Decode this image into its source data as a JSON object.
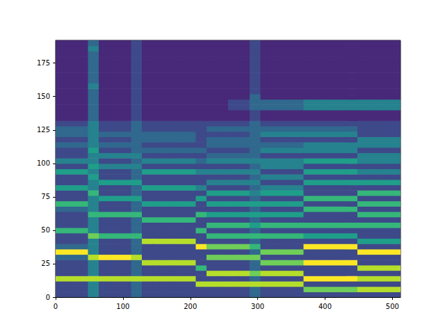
{
  "chart_data": {
    "type": "heatmap",
    "x": [
      0,
      16,
      32,
      48,
      64,
      80,
      96,
      112,
      128,
      144,
      160,
      176,
      192,
      208,
      224,
      240,
      256,
      272,
      288,
      304,
      320,
      336,
      352,
      368,
      384,
      400,
      416,
      432,
      448,
      464,
      480,
      496
    ],
    "y": [
      0,
      4,
      8,
      12,
      16,
      20,
      24,
      28,
      32,
      36,
      40,
      44,
      48,
      52,
      56,
      60,
      64,
      68,
      72,
      76,
      80,
      84,
      88,
      92,
      96,
      100,
      104,
      108,
      112,
      116,
      120,
      124,
      128,
      132,
      136,
      140,
      144,
      148,
      152,
      156,
      160,
      164,
      168,
      172,
      176,
      180,
      184,
      188
    ],
    "z": [
      [
        2,
        2,
        2,
        8,
        2,
        2,
        2,
        3,
        9,
        3,
        2,
        2,
        6,
        2,
        2,
        2,
        3,
        6,
        2,
        2,
        5,
        2,
        2,
        5,
        2,
        4,
        2,
        2,
        3,
        2,
        3,
        3,
        2,
        1,
        1,
        1,
        1,
        1,
        1,
        1,
        1,
        1,
        1,
        1,
        1,
        1,
        1,
        1
      ],
      [
        2,
        2,
        2,
        8,
        2,
        2,
        2,
        3,
        9,
        3,
        2,
        2,
        6,
        2,
        2,
        2,
        3,
        6,
        2,
        2,
        5,
        2,
        2,
        5,
        2,
        4,
        2,
        2,
        3,
        2,
        3,
        3,
        2,
        1,
        1,
        1,
        1,
        1,
        1,
        1,
        1,
        1,
        1,
        1,
        1,
        1,
        1,
        1
      ],
      [
        2,
        2,
        2,
        8,
        2,
        2,
        2,
        3,
        9,
        3,
        2,
        2,
        6,
        2,
        2,
        2,
        3,
        6,
        2,
        2,
        5,
        2,
        2,
        5,
        2,
        4,
        2,
        2,
        3,
        2,
        3,
        3,
        2,
        1,
        1,
        1,
        1,
        1,
        1,
        1,
        1,
        1,
        1,
        1,
        1,
        1,
        1,
        1
      ],
      [
        4,
        4,
        4,
        8,
        4,
        4,
        4,
        8,
        4,
        4,
        4,
        7,
        4,
        4,
        4,
        6,
        4,
        4,
        4,
        6,
        4,
        4,
        5,
        4,
        5,
        4,
        4,
        5,
        4,
        4,
        4,
        4,
        4,
        3,
        3,
        3,
        3,
        3,
        3,
        4,
        3,
        3,
        3,
        3,
        3,
        3,
        4,
        3
      ],
      [
        2,
        2,
        2,
        8,
        2,
        2,
        2,
        9,
        2,
        2,
        2,
        6,
        2,
        2,
        2,
        6,
        2,
        2,
        5,
        2,
        2,
        5,
        2,
        2,
        4,
        2,
        4,
        2,
        3,
        2,
        3,
        2,
        2,
        1,
        1,
        1,
        1,
        1,
        1,
        1,
        1,
        1,
        1,
        1,
        1,
        1,
        1,
        1
      ],
      [
        2,
        2,
        2,
        8,
        2,
        2,
        2,
        9,
        2,
        2,
        2,
        6,
        2,
        2,
        2,
        6,
        2,
        2,
        5,
        2,
        2,
        5,
        2,
        2,
        4,
        2,
        4,
        2,
        3,
        2,
        3,
        2,
        2,
        1,
        1,
        1,
        1,
        1,
        1,
        1,
        1,
        1,
        1,
        1,
        1,
        1,
        1,
        1
      ],
      [
        2,
        2,
        2,
        8,
        2,
        2,
        2,
        9,
        2,
        2,
        2,
        6,
        2,
        2,
        2,
        6,
        2,
        2,
        5,
        2,
        2,
        5,
        2,
        2,
        4,
        2,
        4,
        2,
        3,
        2,
        3,
        2,
        2,
        1,
        1,
        1,
        1,
        1,
        1,
        1,
        1,
        1,
        1,
        1,
        1,
        1,
        1,
        1
      ],
      [
        3,
        3,
        3,
        8,
        3,
        3,
        3,
        8,
        3,
        3,
        3,
        6,
        3,
        3,
        3,
        6,
        3,
        3,
        5,
        3,
        3,
        5,
        3,
        3,
        4,
        3,
        4,
        3,
        3,
        3,
        3,
        3,
        3,
        2,
        2,
        2,
        2,
        2,
        2,
        2,
        2,
        2,
        2,
        2,
        2,
        2,
        2,
        2
      ],
      [
        2,
        2,
        2,
        8,
        2,
        2,
        8,
        2,
        2,
        2,
        8,
        2,
        2,
        2,
        6,
        2,
        2,
        5,
        2,
        2,
        5,
        2,
        2,
        5,
        2,
        4,
        2,
        3,
        2,
        3,
        3,
        2,
        2,
        1,
        1,
        1,
        1,
        1,
        1,
        1,
        1,
        1,
        1,
        1,
        1,
        1,
        1,
        1
      ],
      [
        2,
        2,
        2,
        8,
        2,
        2,
        8,
        2,
        2,
        2,
        8,
        2,
        2,
        2,
        6,
        2,
        2,
        5,
        2,
        2,
        5,
        2,
        2,
        5,
        2,
        4,
        2,
        3,
        2,
        3,
        3,
        2,
        2,
        1,
        1,
        1,
        1,
        1,
        1,
        1,
        1,
        1,
        1,
        1,
        1,
        1,
        1,
        1
      ],
      [
        2,
        2,
        2,
        8,
        2,
        2,
        8,
        2,
        2,
        2,
        8,
        2,
        2,
        2,
        6,
        2,
        2,
        5,
        2,
        2,
        5,
        2,
        2,
        5,
        2,
        4,
        2,
        3,
        2,
        3,
        3,
        2,
        2,
        1,
        1,
        1,
        1,
        1,
        1,
        1,
        1,
        1,
        1,
        1,
        1,
        1,
        1,
        1
      ],
      [
        2,
        2,
        2,
        8,
        2,
        2,
        8,
        2,
        2,
        2,
        8,
        2,
        2,
        2,
        6,
        2,
        2,
        5,
        2,
        2,
        5,
        2,
        2,
        5,
        2,
        4,
        2,
        3,
        2,
        3,
        3,
        2,
        2,
        1,
        1,
        1,
        1,
        1,
        1,
        1,
        1,
        1,
        1,
        1,
        1,
        1,
        1,
        1
      ],
      [
        2,
        2,
        2,
        8,
        2,
        2,
        8,
        2,
        2,
        2,
        8,
        2,
        2,
        2,
        6,
        2,
        2,
        5,
        2,
        2,
        5,
        2,
        2,
        5,
        2,
        4,
        2,
        3,
        2,
        3,
        3,
        2,
        2,
        1,
        1,
        1,
        1,
        1,
        1,
        1,
        1,
        1,
        1,
        1,
        1,
        1,
        1,
        1
      ],
      [
        2,
        2,
        8,
        2,
        2,
        6,
        2,
        2,
        2,
        9,
        2,
        2,
        6,
        2,
        2,
        6,
        2,
        2,
        5,
        2,
        4,
        2,
        2,
        4,
        2,
        3,
        2,
        3,
        2,
        2,
        2,
        2,
        2,
        1,
        1,
        1,
        1,
        1,
        1,
        1,
        1,
        1,
        1,
        1,
        1,
        1,
        1,
        1
      ],
      [
        2,
        2,
        8,
        2,
        8,
        2,
        2,
        7,
        2,
        7,
        2,
        6,
        2,
        6,
        2,
        5,
        2,
        5,
        2,
        5,
        2,
        4,
        2,
        4,
        2,
        4,
        3,
        2,
        3,
        3,
        2,
        3,
        2,
        1,
        1,
        1,
        1,
        1,
        1,
        1,
        1,
        1,
        1,
        1,
        1,
        1,
        1,
        1
      ],
      [
        2,
        2,
        8,
        2,
        8,
        2,
        2,
        7,
        2,
        7,
        2,
        6,
        2,
        6,
        2,
        5,
        2,
        5,
        2,
        5,
        2,
        4,
        2,
        4,
        2,
        4,
        3,
        2,
        3,
        3,
        2,
        3,
        2,
        1,
        1,
        1,
        1,
        1,
        1,
        1,
        1,
        1,
        1,
        1,
        1,
        1,
        1,
        1
      ],
      [
        2,
        2,
        8,
        2,
        8,
        2,
        2,
        7,
        2,
        7,
        2,
        6,
        2,
        6,
        2,
        5,
        2,
        5,
        2,
        5,
        2,
        4,
        2,
        4,
        2,
        4,
        3,
        2,
        3,
        3,
        2,
        3,
        2,
        1,
        1,
        2,
        2,
        1,
        1,
        1,
        1,
        1,
        1,
        1,
        1,
        1,
        1,
        1
      ],
      [
        2,
        2,
        8,
        2,
        8,
        2,
        2,
        7,
        2,
        7,
        2,
        6,
        2,
        6,
        2,
        5,
        2,
        5,
        2,
        5,
        2,
        4,
        2,
        4,
        2,
        4,
        3,
        2,
        3,
        3,
        2,
        3,
        2,
        1,
        1,
        2,
        2,
        1,
        1,
        1,
        1,
        1,
        1,
        1,
        1,
        1,
        1,
        1
      ],
      [
        3,
        3,
        8,
        3,
        7,
        3,
        3,
        7,
        3,
        6,
        3,
        6,
        3,
        5,
        3,
        5,
        3,
        5,
        3,
        4,
        3,
        4,
        3,
        4,
        3,
        4,
        3,
        3,
        3,
        3,
        3,
        3,
        3,
        2,
        2,
        3,
        3,
        3,
        2,
        2,
        2,
        2,
        2,
        2,
        2,
        2,
        2,
        2
      ],
      [
        2,
        2,
        8,
        2,
        8,
        2,
        7,
        2,
        7,
        2,
        2,
        6,
        2,
        6,
        2,
        5,
        2,
        5,
        2,
        5,
        4,
        2,
        4,
        2,
        4,
        4,
        2,
        4,
        3,
        2,
        4,
        3,
        2,
        1,
        1,
        3,
        3,
        1,
        1,
        1,
        1,
        1,
        1,
        1,
        1,
        1,
        1,
        1
      ],
      [
        2,
        2,
        8,
        2,
        8,
        2,
        7,
        2,
        7,
        2,
        2,
        6,
        2,
        6,
        2,
        5,
        2,
        5,
        2,
        5,
        4,
        2,
        4,
        2,
        4,
        4,
        2,
        4,
        3,
        2,
        4,
        3,
        2,
        1,
        1,
        3,
        3,
        1,
        1,
        1,
        1,
        1,
        1,
        1,
        1,
        1,
        1,
        1
      ],
      [
        2,
        2,
        8,
        2,
        8,
        2,
        7,
        2,
        7,
        2,
        2,
        6,
        2,
        6,
        2,
        5,
        2,
        5,
        2,
        5,
        4,
        2,
        4,
        2,
        4,
        4,
        2,
        4,
        3,
        2,
        4,
        3,
        2,
        1,
        1,
        3,
        3,
        1,
        1,
        1,
        1,
        1,
        1,
        1,
        1,
        1,
        1,
        1
      ],
      [
        2,
        2,
        8,
        2,
        8,
        2,
        7,
        2,
        7,
        2,
        2,
        6,
        2,
        6,
        2,
        5,
        2,
        5,
        2,
        5,
        4,
        2,
        4,
        2,
        4,
        4,
        2,
        4,
        3,
        2,
        4,
        3,
        2,
        1,
        1,
        3,
        3,
        1,
        1,
        1,
        1,
        1,
        1,
        1,
        1,
        1,
        1,
        1
      ],
      [
        2,
        7,
        2,
        9,
        2,
        2,
        9,
        2,
        2,
        9,
        2,
        5,
        2,
        6,
        2,
        2,
        6,
        2,
        6,
        2,
        2,
        5,
        2,
        5,
        2,
        5,
        2,
        4,
        4,
        2,
        4,
        3,
        2,
        1,
        1,
        4,
        4,
        1,
        1,
        1,
        1,
        1,
        1,
        1,
        1,
        1,
        1,
        1
      ],
      [
        2,
        7,
        2,
        9,
        2,
        2,
        9,
        2,
        2,
        9,
        2,
        5,
        2,
        6,
        2,
        2,
        6,
        2,
        6,
        2,
        2,
        5,
        2,
        5,
        2,
        5,
        2,
        4,
        4,
        2,
        4,
        3,
        2,
        1,
        1,
        4,
        4,
        1,
        1,
        1,
        1,
        1,
        1,
        1,
        1,
        1,
        1,
        1
      ],
      [
        2,
        7,
        2,
        9,
        2,
        2,
        9,
        2,
        2,
        9,
        2,
        5,
        2,
        6,
        2,
        2,
        6,
        2,
        6,
        2,
        2,
        5,
        2,
        5,
        2,
        5,
        2,
        4,
        4,
        2,
        4,
        3,
        2,
        1,
        1,
        4,
        4,
        1,
        1,
        1,
        1,
        1,
        1,
        1,
        1,
        1,
        1,
        1
      ],
      [
        2,
        7,
        2,
        9,
        2,
        2,
        9,
        2,
        2,
        9,
        2,
        5,
        2,
        6,
        2,
        2,
        6,
        2,
        6,
        2,
        2,
        5,
        2,
        5,
        2,
        5,
        2,
        4,
        4,
        2,
        4,
        3,
        2,
        1,
        1,
        4,
        4,
        1,
        1,
        1,
        1,
        1,
        1,
        1,
        1,
        1,
        1,
        1
      ],
      [
        2,
        7,
        2,
        9,
        2,
        2,
        9,
        2,
        2,
        9,
        2,
        5,
        2,
        6,
        2,
        2,
        6,
        2,
        6,
        2,
        2,
        5,
        2,
        5,
        2,
        5,
        2,
        4,
        4,
        2,
        4,
        3,
        2,
        1,
        1,
        4,
        4,
        1,
        1,
        1,
        1,
        1,
        1,
        1,
        1,
        1,
        1,
        1
      ],
      [
        2,
        8,
        2,
        8,
        2,
        8,
        2,
        2,
        9,
        2,
        5,
        2,
        2,
        6,
        2,
        6,
        2,
        6,
        2,
        6,
        2,
        5,
        2,
        4,
        2,
        4,
        4,
        2,
        4,
        4,
        2,
        2,
        2,
        1,
        1,
        4,
        4,
        1,
        1,
        1,
        1,
        1,
        1,
        1,
        1,
        1,
        1,
        1
      ],
      [
        2,
        8,
        2,
        8,
        2,
        8,
        2,
        2,
        9,
        2,
        5,
        2,
        2,
        6,
        2,
        6,
        2,
        6,
        2,
        6,
        2,
        5,
        2,
        4,
        2,
        4,
        4,
        2,
        4,
        4,
        2,
        2,
        2,
        1,
        1,
        4,
        4,
        1,
        1,
        1,
        1,
        1,
        1,
        1,
        1,
        1,
        1,
        1
      ],
      [
        2,
        8,
        2,
        8,
        2,
        8,
        2,
        2,
        9,
        2,
        5,
        2,
        2,
        6,
        2,
        6,
        2,
        6,
        2,
        6,
        2,
        5,
        2,
        4,
        2,
        4,
        4,
        2,
        4,
        4,
        2,
        2,
        2,
        1,
        1,
        4,
        4,
        1,
        1,
        1,
        1,
        1,
        1,
        1,
        1,
        1,
        1,
        1
      ],
      [
        2,
        8,
        2,
        8,
        2,
        8,
        2,
        2,
        9,
        2,
        5,
        2,
        2,
        6,
        2,
        6,
        2,
        6,
        2,
        6,
        2,
        5,
        2,
        4,
        2,
        4,
        4,
        2,
        4,
        4,
        2,
        2,
        2,
        1,
        1,
        4,
        4,
        1,
        1,
        1,
        1,
        1,
        1,
        1,
        1,
        1,
        1,
        1
      ]
    ],
    "zlim": [
      0,
      9
    ],
    "xlim": [
      0,
      512
    ],
    "ylim": [
      0,
      192
    ],
    "xticks": [
      0,
      100,
      200,
      300,
      400,
      500
    ],
    "yticks": [
      0,
      25,
      50,
      75,
      100,
      125,
      150,
      175
    ],
    "grid": false
  }
}
